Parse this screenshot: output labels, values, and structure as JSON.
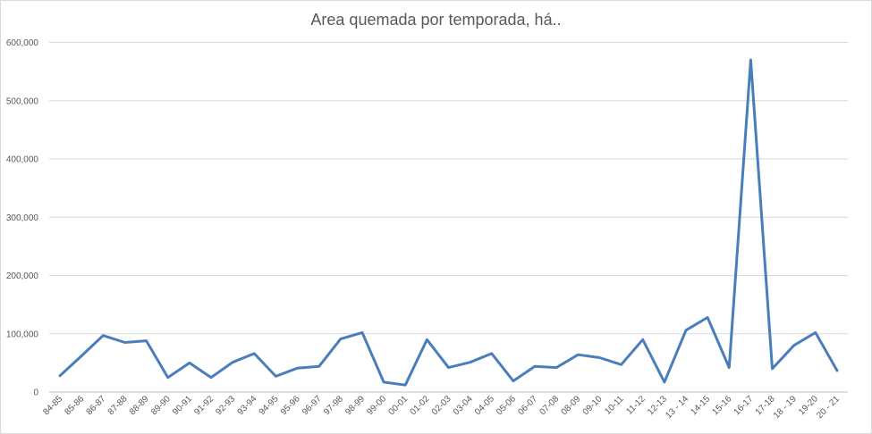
{
  "chart_data": {
    "type": "line",
    "title": "Area quemada por temporada, há..",
    "xlabel": "",
    "ylabel": "",
    "ylim": [
      0,
      600000
    ],
    "yticks": [
      "0",
      "100,000",
      "200,000",
      "300,000",
      "400,000",
      "500,000",
      "600,000"
    ],
    "ytick_values": [
      0,
      100000,
      200000,
      300000,
      400000,
      500000,
      600000
    ],
    "grid": true,
    "legend": "none",
    "categories": [
      "84-85",
      "85-86",
      "86-87",
      "87-88",
      "88-89",
      "89-90",
      "90-91",
      "91-92",
      "92-93",
      "93-94",
      "94-95",
      "95-96",
      "96-97",
      "97-98",
      "98-99",
      "99-00",
      "00-01",
      "01-02",
      "02-03",
      "03-04",
      "04-05",
      "05-06",
      "06-07",
      "07-08",
      "08-09",
      "09-10",
      "10-11",
      "11-12",
      "12-13",
      "13 - 14",
      "14-15",
      "15-16",
      "16-17",
      "17-18",
      "18 - 19",
      "19-20",
      "20 - 21"
    ],
    "series": [
      {
        "color": "#4a7ebb",
        "values": [
          28000,
          62000,
          97000,
          85000,
          88000,
          25000,
          50000,
          25000,
          51000,
          66000,
          27000,
          41000,
          44000,
          91000,
          102000,
          17000,
          12000,
          90000,
          42000,
          51000,
          66000,
          19000,
          44000,
          42000,
          64000,
          59000,
          47000,
          90000,
          17000,
          106000,
          128000,
          42000,
          570000,
          40000,
          80000,
          102000,
          37000
        ]
      }
    ]
  }
}
